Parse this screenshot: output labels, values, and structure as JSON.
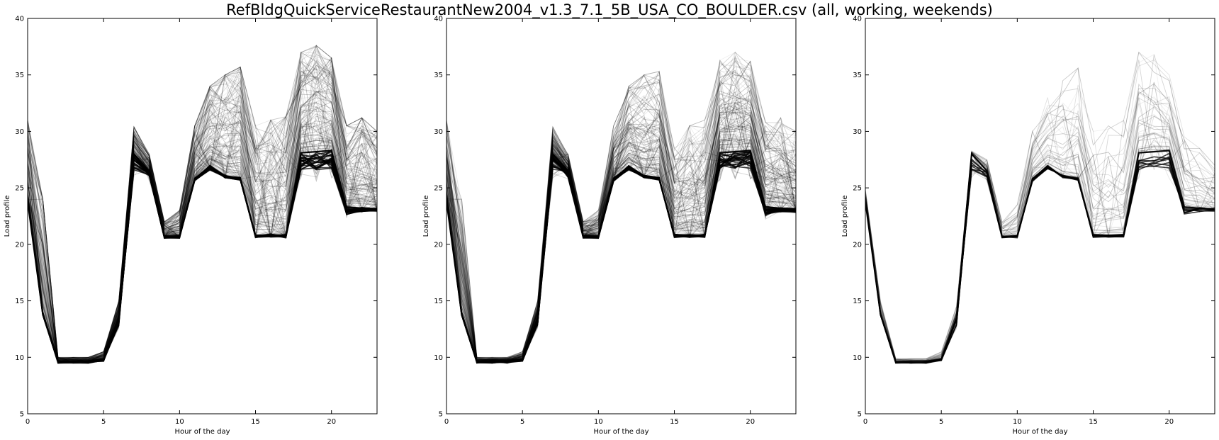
{
  "figure": {
    "title": "RefBldgQuickServiceRestaurantNew2004_v1.3_7.1_5B_USA_CO_BOULDER.csv (all, working, weekends)"
  },
  "chart_data": [
    {
      "type": "line",
      "panel": "all",
      "xlabel": "Hour of the day",
      "ylabel": "Load profile",
      "xlim": [
        0,
        23
      ],
      "ylim": [
        5,
        40
      ],
      "xticks": [
        0,
        5,
        10,
        15,
        20
      ],
      "yticks": [
        5,
        10,
        15,
        20,
        25,
        30,
        35,
        40
      ],
      "grid": false,
      "line_color": "#000000",
      "hours": [
        0,
        1,
        2,
        3,
        4,
        5,
        6,
        7,
        8,
        9,
        10,
        11,
        12,
        13,
        14,
        15,
        16,
        17,
        18,
        19,
        20,
        21,
        22,
        23
      ],
      "typical_profile": [
        23.8,
        13.8,
        9.6,
        9.6,
        9.6,
        9.8,
        13.5,
        28.0,
        26.5,
        20.7,
        20.7,
        25.8,
        26.9,
        26.0,
        25.8,
        20.8,
        20.8,
        20.8,
        28.1,
        28.2,
        28.3,
        23.3,
        23.2,
        23.1
      ],
      "variation_range": [
        [
          24.5,
          31
        ],
        [
          14,
          24
        ],
        [
          9.6,
          10
        ],
        [
          9.6,
          10
        ],
        [
          9.6,
          10
        ],
        [
          9.7,
          10.5
        ],
        [
          12.5,
          15
        ],
        [
          25.8,
          30.4
        ],
        [
          25.6,
          28
        ],
        [
          20.6,
          22
        ],
        [
          20.6,
          23
        ],
        [
          25.6,
          30.5
        ],
        [
          26.5,
          34
        ],
        [
          26,
          35
        ],
        [
          25.8,
          35.7
        ],
        [
          20.6,
          30.5
        ],
        [
          20.6,
          31
        ],
        [
          20.6,
          31.3
        ],
        [
          25.6,
          37
        ],
        [
          25.6,
          37.6
        ],
        [
          25.8,
          36.5
        ],
        [
          22.2,
          30.5
        ],
        [
          22.8,
          31.2
        ],
        [
          22.8,
          30
        ]
      ]
    },
    {
      "type": "line",
      "panel": "working",
      "xlabel": "Hour of the day",
      "ylabel": "Load profile",
      "xlim": [
        0,
        23
      ],
      "ylim": [
        5,
        40
      ],
      "xticks": [
        0,
        5,
        10,
        15,
        20
      ],
      "yticks": [
        5,
        10,
        15,
        20,
        25,
        30,
        35,
        40
      ],
      "grid": false,
      "line_color": "#000000",
      "hours": [
        0,
        1,
        2,
        3,
        4,
        5,
        6,
        7,
        8,
        9,
        10,
        11,
        12,
        13,
        14,
        15,
        16,
        17,
        18,
        19,
        20,
        21,
        22,
        23
      ],
      "typical_profile": [
        23.8,
        13.8,
        9.6,
        9.6,
        9.6,
        9.8,
        13.5,
        28.0,
        26.5,
        20.7,
        20.7,
        25.8,
        26.9,
        26.0,
        25.8,
        20.8,
        20.8,
        20.8,
        28.1,
        28.2,
        28.3,
        23.3,
        23.2,
        23.1
      ],
      "variation_range": [
        [
          24.5,
          31
        ],
        [
          14,
          24
        ],
        [
          9.6,
          10
        ],
        [
          9.6,
          10
        ],
        [
          9.6,
          10
        ],
        [
          9.7,
          10.5
        ],
        [
          12.5,
          15
        ],
        [
          25.8,
          30.4
        ],
        [
          25.6,
          28
        ],
        [
          20.6,
          22
        ],
        [
          20.6,
          23
        ],
        [
          25.6,
          30.5
        ],
        [
          26.5,
          34
        ],
        [
          26,
          35
        ],
        [
          25.8,
          35.3
        ],
        [
          20.6,
          28.5
        ],
        [
          20.6,
          30.5
        ],
        [
          20.6,
          31
        ],
        [
          25.6,
          36.3
        ],
        [
          25.6,
          37
        ],
        [
          25.8,
          36.2
        ],
        [
          22.2,
          30.8
        ],
        [
          22.8,
          31.2
        ],
        [
          22.8,
          30
        ]
      ]
    },
    {
      "type": "line",
      "panel": "weekends",
      "xlabel": "Hour of the day",
      "ylabel": "Load profile",
      "xlim": [
        0,
        23
      ],
      "ylim": [
        5,
        40
      ],
      "xticks": [
        0,
        5,
        10,
        15,
        20
      ],
      "yticks": [
        5,
        10,
        15,
        20,
        25,
        30,
        35,
        40
      ],
      "grid": false,
      "line_color": "#000000",
      "hours": [
        0,
        1,
        2,
        3,
        4,
        5,
        6,
        7,
        8,
        9,
        10,
        11,
        12,
        13,
        14,
        15,
        16,
        17,
        18,
        19,
        20,
        21,
        22,
        23
      ],
      "typical_profile": [
        23.8,
        13.8,
        9.6,
        9.6,
        9.6,
        9.8,
        13.5,
        28.0,
        26.5,
        20.7,
        20.7,
        25.8,
        26.9,
        26.0,
        25.8,
        20.8,
        20.8,
        20.8,
        28.1,
        28.2,
        28.3,
        23.3,
        23.2,
        23.1
      ],
      "variation_range": [
        [
          24.5,
          25
        ],
        [
          13.8,
          15
        ],
        [
          9.6,
          9.9
        ],
        [
          9.6,
          9.9
        ],
        [
          9.6,
          9.9
        ],
        [
          9.7,
          10.5
        ],
        [
          12.5,
          14.5
        ],
        [
          25.8,
          28.3
        ],
        [
          25.6,
          27.5
        ],
        [
          20.6,
          22
        ],
        [
          20.6,
          23.5
        ],
        [
          25.6,
          30
        ],
        [
          26.5,
          33
        ],
        [
          26,
          34.5
        ],
        [
          25.8,
          35.6
        ],
        [
          20.6,
          30
        ],
        [
          20.6,
          30.5
        ],
        [
          20.6,
          31
        ],
        [
          25.6,
          37
        ],
        [
          25.6,
          36.8
        ],
        [
          25.8,
          35
        ],
        [
          22.2,
          29.5
        ],
        [
          22.8,
          28.5
        ],
        [
          22.8,
          27
        ]
      ]
    }
  ]
}
